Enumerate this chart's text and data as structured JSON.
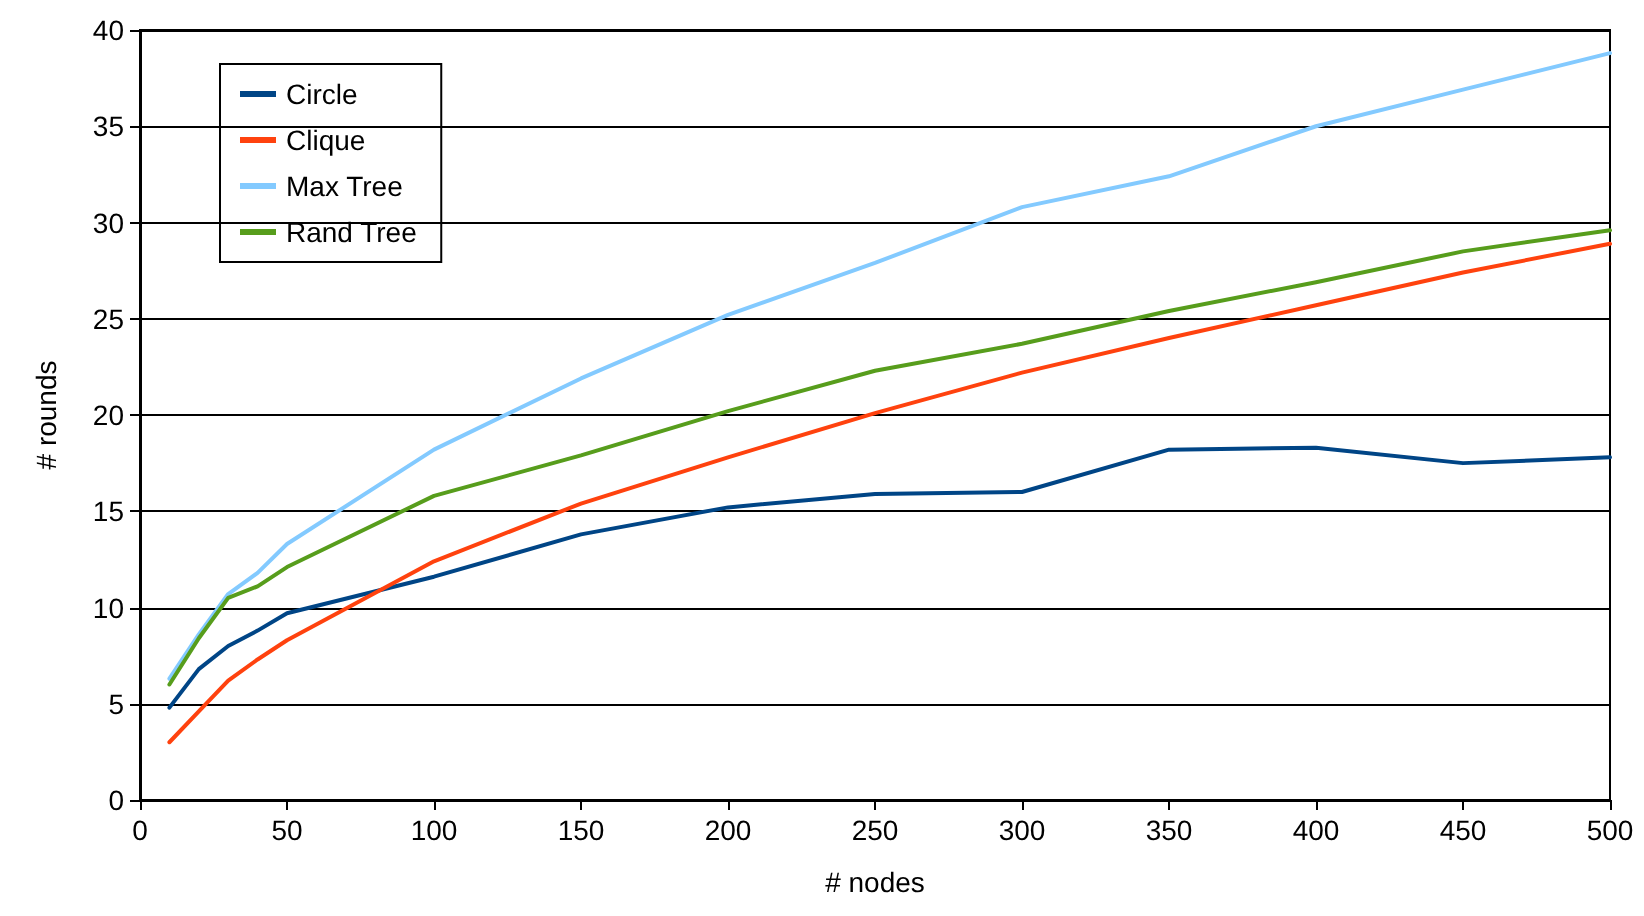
{
  "chart_data": {
    "type": "line",
    "xlabel": "# nodes",
    "ylabel": "# rounds",
    "x": [
      10,
      20,
      30,
      40,
      50,
      100,
      150,
      200,
      250,
      300,
      350,
      400,
      450,
      500
    ],
    "series": [
      {
        "name": "Circle",
        "color": "#004586",
        "values": [
          4.8,
          6.8,
          8.0,
          8.8,
          9.7,
          11.6,
          13.8,
          15.2,
          15.9,
          16.0,
          18.2,
          18.3,
          17.5,
          17.8
        ]
      },
      {
        "name": "Clique",
        "color": "#ff420e",
        "values": [
          3.0,
          4.6,
          6.2,
          7.3,
          8.3,
          12.4,
          15.4,
          17.8,
          20.1,
          22.2,
          24.0,
          25.7,
          27.4,
          28.9
        ]
      },
      {
        "name": "Max Tree",
        "color": "#83caff",
        "values": [
          6.3,
          8.6,
          10.7,
          11.8,
          13.3,
          18.2,
          21.9,
          25.2,
          27.9,
          30.8,
          32.4,
          35.0,
          36.9,
          38.8
        ]
      },
      {
        "name": "Rand Tree",
        "color": "#579d1c",
        "values": [
          6.0,
          8.4,
          10.5,
          11.1,
          12.1,
          15.8,
          17.9,
          20.2,
          22.3,
          23.7,
          25.4,
          26.9,
          28.5,
          29.6
        ]
      }
    ],
    "xlim": [
      0,
      500
    ],
    "xticks": [
      0,
      50,
      100,
      150,
      200,
      250,
      300,
      350,
      400,
      450,
      500
    ],
    "ylim": [
      0,
      40
    ],
    "yticks": [
      0,
      5,
      10,
      15,
      20,
      25,
      30,
      35,
      40
    ],
    "grid": "y",
    "legend": "top left",
    "marker": "none",
    "line_style": "solid"
  }
}
